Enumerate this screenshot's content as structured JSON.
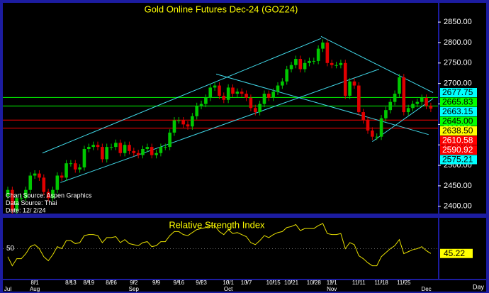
{
  "chart_data": [
    {
      "type": "candlestick",
      "title": "Gold Online Futures Dec-24 (GOZ24)",
      "categories": [
        null,
        null,
        null,
        null,
        null,
        null,
        "8/1",
        null,
        null,
        null,
        null,
        null,
        null,
        null,
        "8/13",
        null,
        null,
        null,
        "8/19",
        null,
        null,
        null,
        null,
        "8/26",
        null,
        null,
        null,
        null,
        "9/2",
        null,
        null,
        null,
        null,
        "9/9",
        null,
        null,
        null,
        null,
        "9/16",
        null,
        null,
        null,
        null,
        "9/23",
        null,
        null,
        null,
        null,
        null,
        "10/1",
        null,
        null,
        null,
        "10/7",
        null,
        null,
        null,
        null,
        null,
        "10/15",
        null,
        null,
        null,
        "10/21",
        null,
        null,
        null,
        null,
        "10/28",
        null,
        null,
        null,
        "11/1",
        null,
        null,
        null,
        null,
        null,
        "11/11",
        null,
        null,
        null,
        null,
        "11/18",
        null,
        null,
        null,
        null,
        "11/25",
        null,
        null,
        null,
        null,
        null,
        null
      ],
      "months": [
        "Jul",
        null,
        null,
        null,
        null,
        null,
        "Aug",
        null,
        null,
        null,
        null,
        null,
        null,
        null,
        null,
        null,
        null,
        null,
        null,
        null,
        null,
        null,
        null,
        null,
        null,
        null,
        null,
        null,
        "Sep",
        null,
        null,
        null,
        null,
        null,
        null,
        null,
        null,
        null,
        null,
        null,
        null,
        null,
        null,
        null,
        null,
        null,
        null,
        null,
        null,
        "Oct",
        null,
        null,
        null,
        null,
        null,
        null,
        null,
        null,
        null,
        null,
        null,
        null,
        null,
        null,
        null,
        null,
        null,
        null,
        null,
        null,
        null,
        null,
        "Nov",
        null,
        null,
        null,
        null,
        null,
        null,
        null,
        null,
        null,
        null,
        null,
        null,
        null,
        null,
        null,
        null,
        null,
        null,
        null,
        null,
        "Dec",
        null
      ],
      "open": [
        2425,
        2440,
        2390,
        2420,
        2420,
        2440,
        2475,
        2480,
        2470,
        2435,
        2420,
        2440,
        2475,
        2470,
        2505,
        2505,
        2490,
        2495,
        2540,
        2545,
        2550,
        2545,
        2515,
        2545,
        2545,
        2555,
        2530,
        2550,
        2535,
        2530,
        2525,
        2540,
        2545,
        2525,
        2530,
        2545,
        2545,
        2580,
        2610,
        2610,
        2600,
        2595,
        2620,
        2645,
        2650,
        2665,
        2690,
        2695,
        2670,
        2660,
        2690,
        2675,
        2680,
        2675,
        2665,
        2640,
        2630,
        2650,
        2675,
        2665,
        2680,
        2695,
        2705,
        2735,
        2745,
        2760,
        2735,
        2750,
        2755,
        2755,
        2785,
        2800,
        2750,
        2745,
        2745,
        2750,
        2670,
        2705,
        2695,
        2630,
        2610,
        2585,
        2570,
        2570,
        2615,
        2635,
        2655,
        2675,
        2715,
        2630,
        2640,
        2650,
        2655,
        2665,
        2645
      ],
      "high": [
        2448,
        2448,
        2428,
        2428,
        2448,
        2483,
        2488,
        2488,
        2478,
        2443,
        2448,
        2483,
        2483,
        2513,
        2513,
        2513,
        2503,
        2548,
        2553,
        2558,
        2558,
        2553,
        2553,
        2553,
        2563,
        2563,
        2558,
        2558,
        2543,
        2538,
        2548,
        2553,
        2553,
        2538,
        2553,
        2553,
        2588,
        2618,
        2618,
        2618,
        2608,
        2628,
        2653,
        2658,
        2673,
        2698,
        2703,
        2703,
        2678,
        2698,
        2698,
        2688,
        2688,
        2683,
        2673,
        2648,
        2658,
        2683,
        2683,
        2688,
        2703,
        2713,
        2743,
        2753,
        2768,
        2768,
        2758,
        2763,
        2763,
        2793,
        2808,
        2808,
        2758,
        2753,
        2758,
        2758,
        2713,
        2713,
        2703,
        2638,
        2618,
        2593,
        2578,
        2623,
        2643,
        2663,
        2683,
        2723,
        2723,
        2648,
        2658,
        2663,
        2673,
        2673,
        2653
      ],
      "low": [
        2417,
        2382,
        2382,
        2412,
        2412,
        2432,
        2467,
        2462,
        2427,
        2412,
        2412,
        2432,
        2462,
        2462,
        2497,
        2482,
        2482,
        2487,
        2532,
        2537,
        2537,
        2507,
        2507,
        2537,
        2537,
        2522,
        2522,
        2527,
        2522,
        2517,
        2517,
        2532,
        2517,
        2517,
        2522,
        2537,
        2537,
        2572,
        2602,
        2592,
        2587,
        2587,
        2612,
        2637,
        2642,
        2657,
        2682,
        2662,
        2652,
        2652,
        2667,
        2667,
        2667,
        2657,
        2632,
        2622,
        2622,
        2642,
        2657,
        2657,
        2672,
        2687,
        2697,
        2727,
        2737,
        2727,
        2727,
        2742,
        2747,
        2747,
        2777,
        2742,
        2737,
        2737,
        2737,
        2662,
        2662,
        2687,
        2622,
        2602,
        2577,
        2562,
        2562,
        2562,
        2607,
        2627,
        2647,
        2667,
        2622,
        2622,
        2632,
        2642,
        2647,
        2637,
        2630
      ],
      "close": [
        2440,
        2390,
        2420,
        2420,
        2440,
        2475,
        2480,
        2470,
        2435,
        2420,
        2440,
        2475,
        2470,
        2505,
        2505,
        2490,
        2495,
        2540,
        2545,
        2550,
        2545,
        2515,
        2545,
        2545,
        2555,
        2530,
        2550,
        2535,
        2530,
        2525,
        2540,
        2545,
        2525,
        2530,
        2545,
        2545,
        2580,
        2610,
        2610,
        2600,
        2595,
        2620,
        2645,
        2650,
        2665,
        2690,
        2695,
        2670,
        2660,
        2690,
        2675,
        2680,
        2675,
        2665,
        2640,
        2630,
        2650,
        2675,
        2665,
        2680,
        2695,
        2705,
        2735,
        2745,
        2760,
        2735,
        2750,
        2755,
        2755,
        2785,
        2800,
        2750,
        2745,
        2745,
        2750,
        2670,
        2705,
        2695,
        2630,
        2610,
        2585,
        2570,
        2570,
        2615,
        2635,
        2655,
        2675,
        2715,
        2630,
        2640,
        2650,
        2655,
        2665,
        2645,
        2638.5
      ],
      "up_color": "#00c800",
      "down_color": "#e00000",
      "ylim": [
        2384,
        2897
      ],
      "yticks": [
        {
          "value": 2400,
          "label": "2400.00"
        },
        {
          "value": 2450,
          "label": "2450.00"
        },
        {
          "value": 2500,
          "label": "2500.00"
        },
        {
          "value": 2550,
          "label": "2550.00"
        },
        {
          "value": 2600,
          "label": "2600.00"
        },
        {
          "value": 2650,
          "label": "2650.00"
        },
        {
          "value": 2700,
          "label": "2700.00"
        },
        {
          "value": 2750,
          "label": "2750.00"
        },
        {
          "value": 2800,
          "label": "2800.00"
        },
        {
          "value": 2850,
          "label": "2850.00"
        }
      ],
      "trendline_color": "#40d8e8",
      "trendlines": [
        {
          "x": [
            7.7,
            69.6
          ],
          "y": [
            2530,
            2810
          ]
        },
        {
          "x": [
            69.6,
            94.5
          ],
          "y": [
            2815,
            2677.75
          ]
        },
        {
          "x": [
            11.7,
            82.5
          ],
          "y": [
            2458,
            2735
          ]
        },
        {
          "x": [
            46.3,
            93.5
          ],
          "y": [
            2723,
            2575.21
          ]
        },
        {
          "x": [
            81,
            94.5
          ],
          "y": [
            2558,
            2663.15
          ]
        }
      ],
      "levels": [
        {
          "value": 2677.75,
          "label": "2677.75",
          "color": "#00ffff",
          "text_color": "#000000",
          "line": false
        },
        {
          "value": 2665.83,
          "label": "2665.83",
          "color": "#00ff00",
          "text_color": "#000000",
          "line": true
        },
        {
          "value": 2663.15,
          "label": "2663.15",
          "color": "#00ffff",
          "text_color": "#000000",
          "line": false
        },
        {
          "value": 2645,
          "label": "2645.00",
          "color": "#00ff00",
          "text_color": "#000000",
          "line": true
        },
        {
          "value": 2638.5,
          "label": "2638.50",
          "color": "#ffff00",
          "text_color": "#000000",
          "line": false
        },
        {
          "value": 2610.58,
          "label": "2610.58",
          "color": "#ff0000",
          "text_color": "#ffffff",
          "line": true
        },
        {
          "value": 2590.92,
          "label": "2590.92",
          "color": "#ff0000",
          "text_color": "#ffffff",
          "line": true
        },
        {
          "value": 2575.21,
          "label": "2575.21",
          "color": "#00ffff",
          "text_color": "#000000",
          "line": false
        }
      ],
      "annotations": [
        "Chart Source: Aspen Graphics",
        "Data Source: Thai",
        "Date: 12/ 2/24"
      ]
    },
    {
      "type": "line",
      "title": "Relative Strength Index",
      "values": [
        42,
        33,
        40,
        40,
        45,
        52,
        54,
        50,
        42,
        38,
        44,
        52,
        50,
        58,
        58,
        55,
        56,
        63,
        64,
        64,
        63,
        56,
        61,
        61,
        62,
        56,
        59,
        55,
        54,
        53,
        56,
        57,
        52,
        53,
        57,
        57,
        63,
        67,
        67,
        64,
        63,
        66,
        69,
        70,
        71,
        73,
        73,
        67,
        64,
        69,
        65,
        66,
        64,
        62,
        56,
        54,
        58,
        63,
        61,
        64,
        66,
        67,
        71,
        72,
        74,
        68,
        70,
        70,
        70,
        73,
        75,
        65,
        64,
        64,
        65,
        50,
        56,
        54,
        43,
        40,
        36,
        33,
        33,
        42,
        46,
        50,
        53,
        59,
        45,
        47,
        49,
        50,
        52,
        48,
        45.22
      ],
      "color": "#e8e000",
      "value_box_color": "#ffff00",
      "ylim": [
        20,
        80
      ],
      "yticks": [
        50
      ],
      "xlabel": "Day"
    }
  ]
}
